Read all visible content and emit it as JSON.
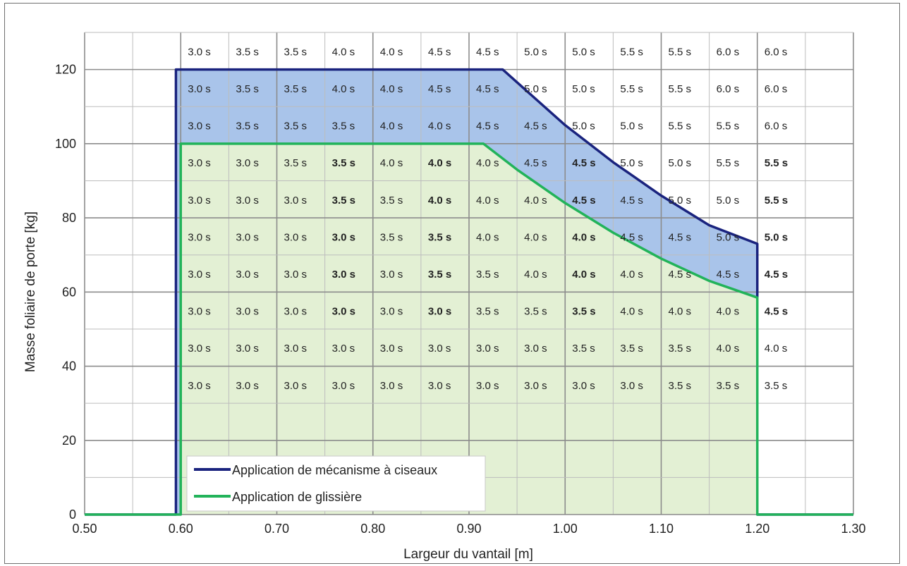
{
  "chart_data": {
    "type": "area",
    "xlabel": "Largeur du vantail [m]",
    "ylabel": "Masse foliaire de porte [kg]",
    "xlim": [
      0.5,
      1.3
    ],
    "ylim": [
      0,
      130
    ],
    "x_ticks": [
      "0.50",
      "0.60",
      "0.70",
      "0.80",
      "0.90",
      "1.00",
      "1.10",
      "1.20",
      "1.30"
    ],
    "y_ticks": [
      "0",
      "20",
      "40",
      "60",
      "80",
      "100",
      "120"
    ],
    "grid": true,
    "legend_placement": "bottom-left",
    "series": [
      {
        "name": "Application de mécanisme à ciseaux",
        "color": "#1a237e",
        "fill": "#a9c4ea",
        "x": [
          0.5,
          0.595,
          0.595,
          0.935,
          1.0,
          1.05,
          1.1,
          1.15,
          1.2,
          1.2,
          1.3
        ],
        "y": [
          0,
          0,
          120,
          120,
          105,
          95,
          86,
          78,
          73,
          0,
          0
        ]
      },
      {
        "name": "Application de glissière",
        "color": "#22b35a",
        "fill": "#e3f0d4",
        "x": [
          0.5,
          0.6,
          0.6,
          0.915,
          0.95,
          1.0,
          1.05,
          1.1,
          1.15,
          1.2,
          1.2,
          1.3
        ],
        "y": [
          0,
          0,
          100,
          100,
          93,
          84,
          76,
          69,
          63,
          58.5,
          0,
          0
        ]
      }
    ],
    "table": {
      "rows": [
        [
          "3.0 s",
          "3.5 s",
          "3.5 s",
          "4.0 s",
          "4.0 s",
          "4.5 s",
          "4.5 s",
          "5.0 s",
          "5.0 s",
          "5.5 s",
          "5.5 s",
          "6.0 s",
          "6.0 s"
        ],
        [
          "3.0 s",
          "3.5 s",
          "3.5 s",
          "4.0 s",
          "4.0 s",
          "4.5 s",
          "4.5 s",
          "5.0 s",
          "5.0 s",
          "5.5 s",
          "5.5 s",
          "6.0 s",
          "6.0 s"
        ],
        [
          "3.0 s",
          "3.5 s",
          "3.5 s",
          "3.5 s",
          "4.0 s",
          "4.0 s",
          "4.5 s",
          "4.5 s",
          "5.0 s",
          "5.0 s",
          "5.5 s",
          "5.5 s",
          "6.0 s"
        ],
        [
          "3.0 s",
          "3.0 s",
          "3.5 s",
          "3.5 s",
          "4.0 s",
          "4.0 s",
          "4.0 s",
          "4.5 s",
          "4.5 s",
          "5.0 s",
          "5.0 s",
          "5.5 s",
          "5.5 s"
        ],
        [
          "3.0 s",
          "3.0 s",
          "3.0 s",
          "3.5 s",
          "3.5 s",
          "4.0 s",
          "4.0 s",
          "4.0 s",
          "4.5 s",
          "4.5 s",
          "5.0 s",
          "5.0 s",
          "5.5 s"
        ],
        [
          "3.0 s",
          "3.0 s",
          "3.0 s",
          "3.0 s",
          "3.5 s",
          "3.5 s",
          "4.0 s",
          "4.0 s",
          "4.0 s",
          "4.5 s",
          "4.5 s",
          "5.0 s",
          "5.0 s"
        ],
        [
          "3.0 s",
          "3.0 s",
          "3.0 s",
          "3.0 s",
          "3.0 s",
          "3.5 s",
          "3.5 s",
          "4.0 s",
          "4.0 s",
          "4.0 s",
          "4.5 s",
          "4.5 s",
          "4.5 s"
        ],
        [
          "3.0 s",
          "3.0 s",
          "3.0 s",
          "3.0 s",
          "3.0 s",
          "3.0 s",
          "3.5 s",
          "3.5 s",
          "3.5 s",
          "4.0 s",
          "4.0 s",
          "4.0 s",
          "4.5 s"
        ],
        [
          "3.0 s",
          "3.0 s",
          "3.0 s",
          "3.0 s",
          "3.0 s",
          "3.0 s",
          "3.0 s",
          "3.0 s",
          "3.5 s",
          "3.5 s",
          "3.5 s",
          "4.0 s",
          "4.0 s"
        ],
        [
          "3.0 s",
          "3.0 s",
          "3.0 s",
          "3.0 s",
          "3.0 s",
          "3.0 s",
          "3.0 s",
          "3.0 s",
          "3.0 s",
          "3.0 s",
          "3.5 s",
          "3.5 s",
          "3.5 s"
        ]
      ],
      "bold_cells": [
        [
          3,
          3
        ],
        [
          3,
          5
        ],
        [
          3,
          8
        ],
        [
          3,
          12
        ],
        [
          4,
          3
        ],
        [
          4,
          5
        ],
        [
          4,
          8
        ],
        [
          4,
          12
        ],
        [
          5,
          3
        ],
        [
          5,
          5
        ],
        [
          5,
          8
        ],
        [
          5,
          12
        ],
        [
          6,
          3
        ],
        [
          6,
          5
        ],
        [
          6,
          8
        ],
        [
          6,
          12
        ],
        [
          7,
          3
        ],
        [
          7,
          5
        ],
        [
          7,
          8
        ],
        [
          7,
          12
        ]
      ]
    }
  }
}
